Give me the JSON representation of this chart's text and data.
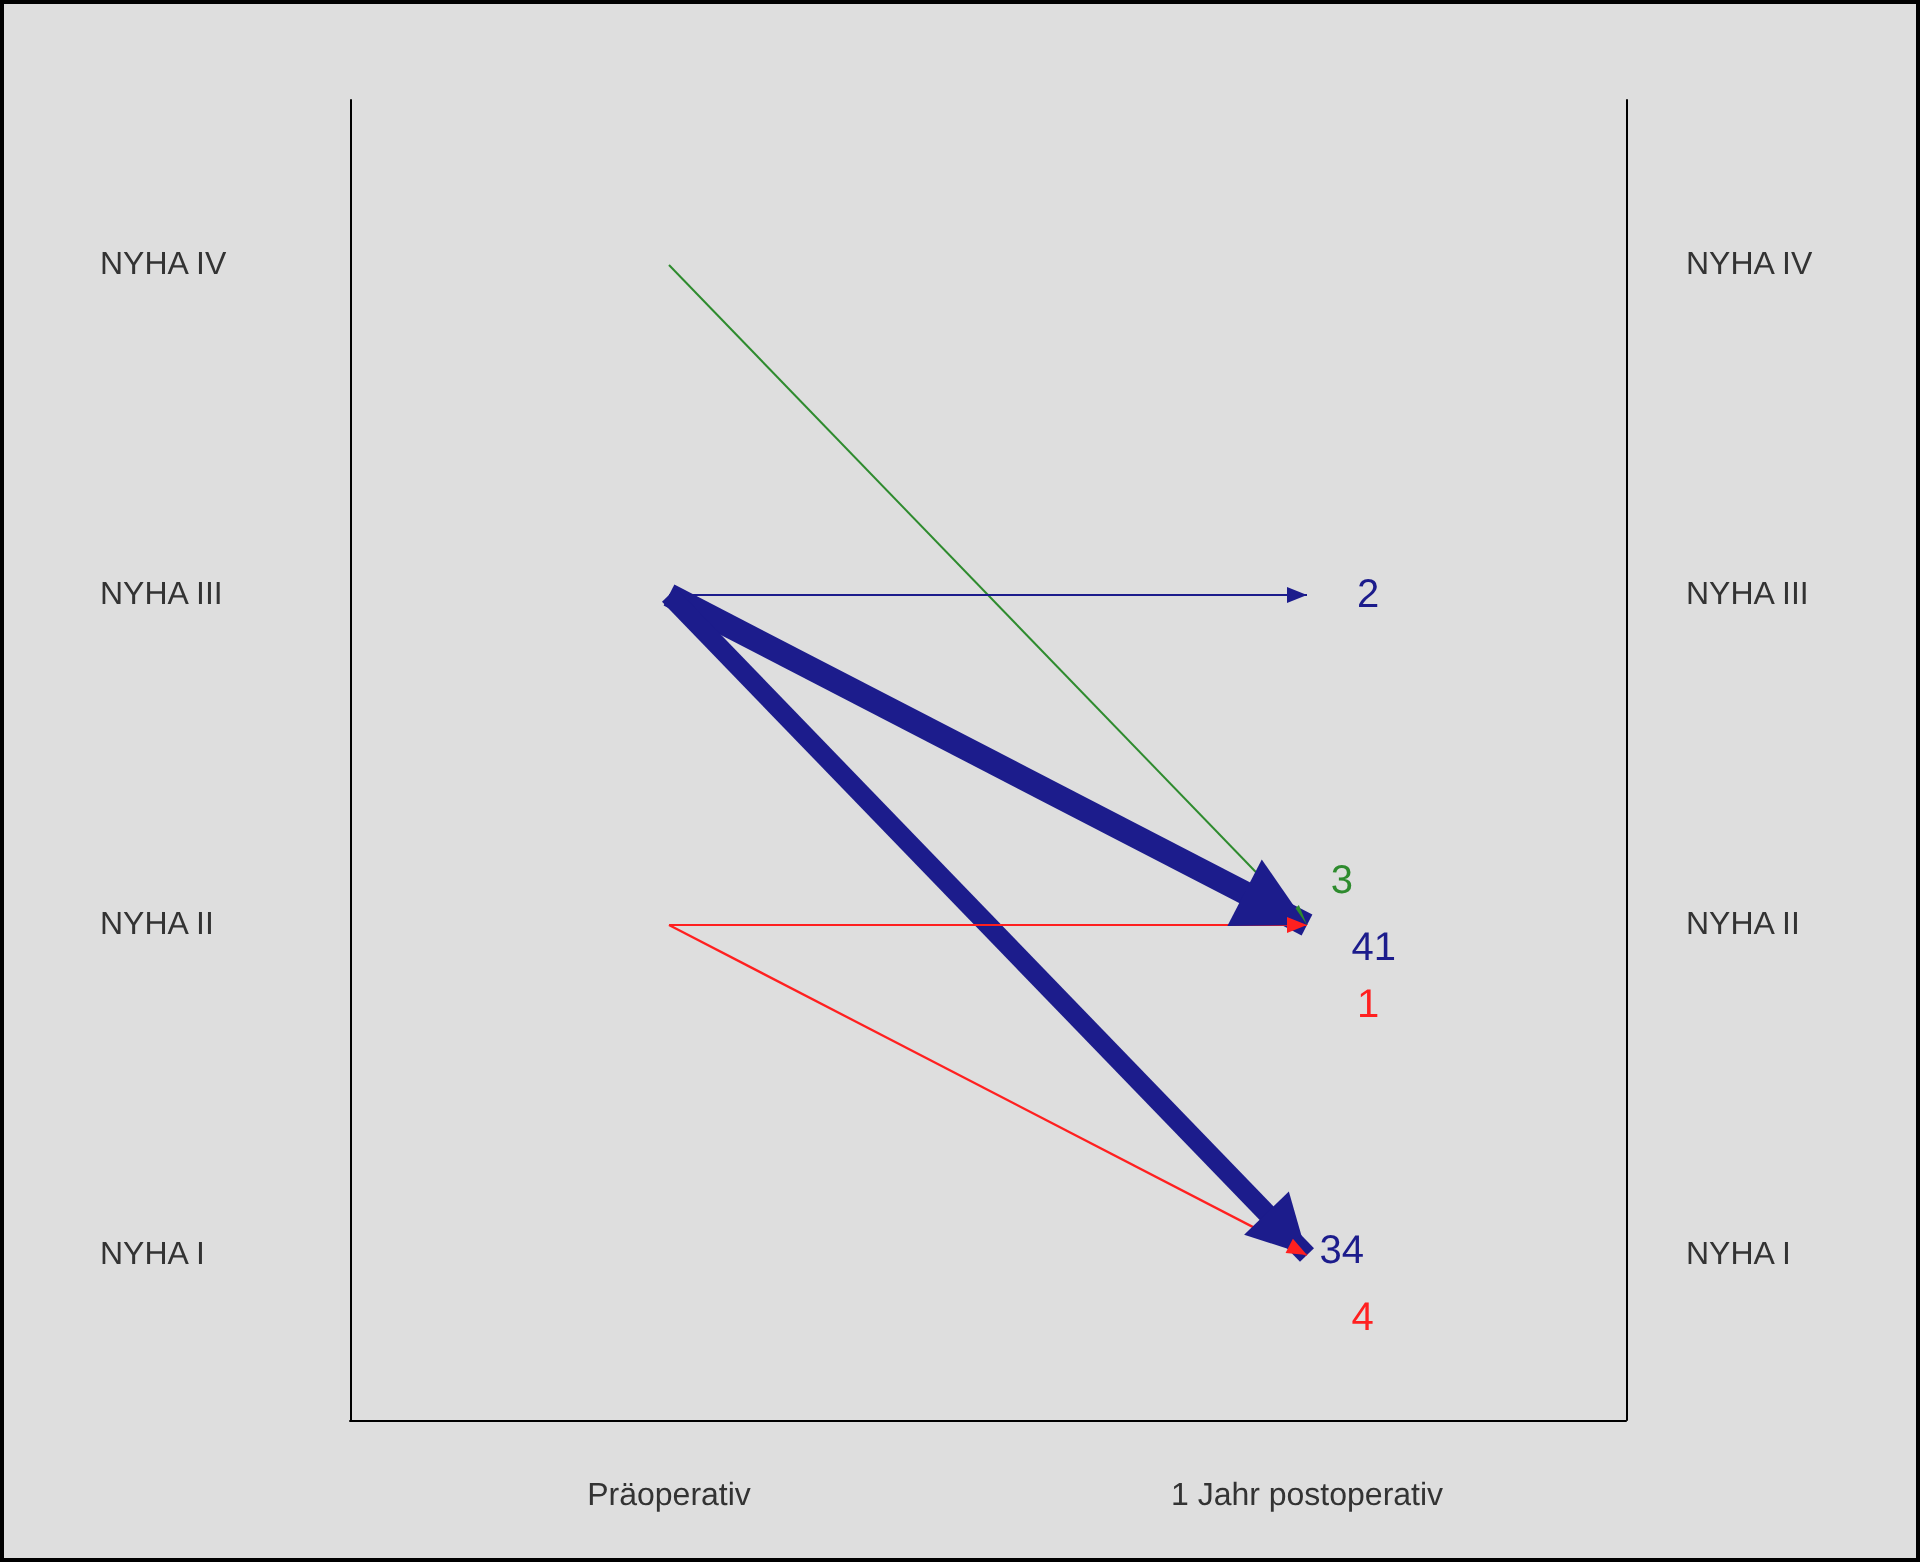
{
  "chart_data": {
    "type": "other",
    "y_categories": [
      "NYHA IV",
      "NYHA III",
      "NYHA II",
      "NYHA I"
    ],
    "categories": [
      "NYHA IV",
      "NYHA III",
      "NYHA II",
      "NYHA I"
    ],
    "annotations": [
      "Präoperativ",
      "1 Jahr postoperativ"
    ],
    "data_labels": true,
    "series": [
      {
        "color": "#2e8b2e",
        "values": [
          null,
          null,
          3,
          null
        ]
      },
      {
        "color": "#1c1c8c",
        "values": [
          null,
          2,
          41,
          34
        ]
      },
      {
        "color": "#ff2020",
        "values": [
          null,
          null,
          1,
          4
        ]
      }
    ]
  }
}
